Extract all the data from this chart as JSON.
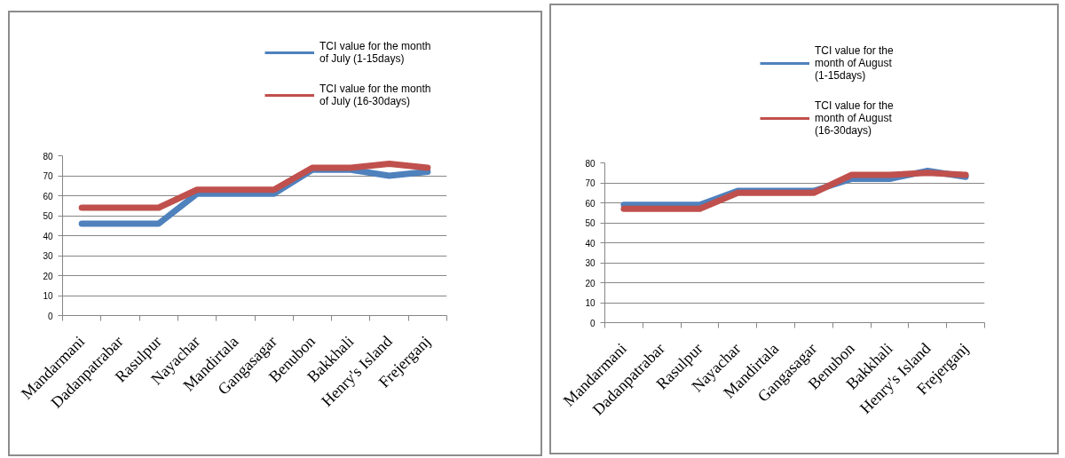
{
  "chart_data": [
    {
      "type": "line",
      "categories": [
        "Mandarmani",
        "Dadanpatrabar",
        "Rasulpur",
        "Nayachar",
        "Mandirtala",
        "Gangasagar",
        "Benubon",
        "Bakkhali",
        "Henry's Island",
        "Frejerganj"
      ],
      "series": [
        {
          "name": "TCI value for the month of July (1-15days)",
          "color": "#4f81bd",
          "values": [
            46,
            46,
            46,
            61,
            61,
            61,
            73,
            73,
            70,
            72
          ]
        },
        {
          "name": "TCI value for the month of July (16-30days)",
          "color": "#c0504d",
          "values": [
            54,
            54,
            54,
            63,
            63,
            63,
            74,
            74,
            76,
            74
          ]
        }
      ],
      "ylim": [
        0,
        80
      ],
      "yticks": [
        0,
        10,
        20,
        30,
        40,
        50,
        60,
        70,
        80
      ],
      "grid": "y",
      "legend": "top right"
    },
    {
      "type": "line",
      "categories": [
        "Mandarmani",
        "Dadanpatrabar",
        "Rasulpur",
        "Nayachar",
        "Mandirtala",
        "Gangasagar",
        "Benubon",
        "Bakkhali",
        "Henry's Island",
        "Frejerganj"
      ],
      "series": [
        {
          "name": "TCI value for the month of August (1-15days)",
          "color": "#4f81bd",
          "values": [
            59,
            59,
            59,
            66,
            66,
            66,
            72,
            72,
            76,
            73
          ]
        },
        {
          "name": "TCI value for the month of August (16-30days)",
          "color": "#c0504d",
          "values": [
            57,
            57,
            57,
            65,
            65,
            65,
            74,
            74,
            75,
            74
          ]
        }
      ],
      "ylim": [
        0,
        80
      ],
      "yticks": [
        0,
        10,
        20,
        30,
        40,
        50,
        60,
        70,
        80
      ],
      "grid": "y",
      "legend": "top right"
    }
  ]
}
